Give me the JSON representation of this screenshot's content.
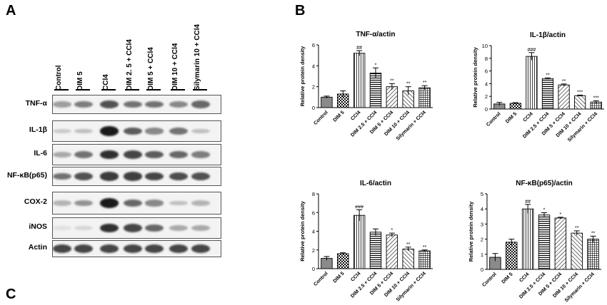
{
  "panels": {
    "a": "A",
    "b": "B",
    "c": "C"
  },
  "western_blot": {
    "lanes": [
      "Control",
      "DIM 5",
      "CCl4",
      "DIM 2. 5 + CCl4",
      "DIM 5 + CCl4",
      "DIM 10 + CCl4",
      "Silymarin 10 + CCl4"
    ],
    "rows": [
      {
        "label": "TNF-α",
        "intensity": [
          0.35,
          0.5,
          0.7,
          0.55,
          0.55,
          0.45,
          0.6
        ]
      },
      {
        "label": "IL-1β",
        "intensity": [
          0.15,
          0.2,
          0.95,
          0.65,
          0.45,
          0.55,
          0.2
        ]
      },
      {
        "label": "IL-6",
        "intensity": [
          0.3,
          0.55,
          0.85,
          0.75,
          0.65,
          0.6,
          0.5
        ]
      },
      {
        "label": "NF-κB(p65)",
        "intensity": [
          0.55,
          0.7,
          0.8,
          0.78,
          0.75,
          0.72,
          0.7
        ]
      },
      {
        "label": "COX-2",
        "intensity": [
          0.25,
          0.4,
          0.95,
          0.6,
          0.45,
          0.2,
          0.25
        ]
      },
      {
        "label": "iNOS",
        "intensity": [
          0.05,
          0.1,
          0.85,
          0.75,
          0.6,
          0.3,
          0.3
        ]
      },
      {
        "label": "Actin",
        "intensity": [
          0.75,
          0.75,
          0.75,
          0.75,
          0.75,
          0.75,
          0.75
        ]
      }
    ]
  },
  "chart_data": [
    {
      "type": "bar",
      "title": "TNF-α/actin",
      "ylabel": "Relative protein density",
      "ylim": [
        0,
        6
      ],
      "yticks": [
        0,
        2,
        4,
        6
      ],
      "categories": [
        "Control",
        "DIM 5",
        "CCl4",
        "DIM 2.5 + CCl4",
        "DIM 5 + CCl4",
        "DIM 10 + CCl4",
        "Silymarin + CCl4"
      ],
      "values": [
        1.0,
        1.3,
        5.2,
        3.3,
        2.0,
        1.6,
        1.9
      ],
      "errors": [
        0.1,
        0.3,
        0.25,
        0.5,
        0.3,
        0.4,
        0.2
      ],
      "annotations": [
        "",
        "",
        "##",
        "*",
        "**",
        "**",
        "**"
      ]
    },
    {
      "type": "bar",
      "title": "IL-1β/actin",
      "ylabel": "Relative protein density",
      "ylim": [
        0,
        10
      ],
      "yticks": [
        0,
        2,
        4,
        6,
        8,
        10
      ],
      "categories": [
        "Control",
        "DIM 5",
        "CCl4",
        "DIM 2.5 + CCl4",
        "DIM 5 + CCl4",
        "DIM 10 + CCl4",
        "Silymarin + CCl4"
      ],
      "values": [
        0.8,
        0.9,
        8.3,
        4.8,
        3.8,
        2.1,
        1.1
      ],
      "errors": [
        0.25,
        0.1,
        0.6,
        0.1,
        0.15,
        0.1,
        0.2
      ],
      "annotations": [
        "",
        "",
        "###",
        "**",
        "**",
        "***",
        "***"
      ]
    },
    {
      "type": "bar",
      "title": "IL-6/actin",
      "ylabel": "Relative protein density",
      "ylim": [
        0,
        8
      ],
      "yticks": [
        0,
        2,
        4,
        6,
        8
      ],
      "categories": [
        "Control",
        "DIM 5",
        "CCl4",
        "DIM 2.5 + CCl4",
        "DIM 5 + CCl4",
        "DIM 10 + CCl4",
        "Silymarin + CCl4"
      ],
      "values": [
        1.1,
        1.6,
        5.7,
        3.9,
        3.6,
        2.1,
        1.9
      ],
      "errors": [
        0.2,
        0.1,
        0.6,
        0.35,
        0.2,
        0.2,
        0.1
      ],
      "annotations": [
        "",
        "",
        "###",
        "",
        "*",
        "**",
        "**"
      ]
    },
    {
      "type": "bar",
      "title": "NF-κB(p65)/actin",
      "ylabel": "Relative protein density",
      "ylim": [
        0,
        5
      ],
      "yticks": [
        0,
        1,
        2,
        3,
        4,
        5
      ],
      "categories": [
        "Control",
        "DIM 5",
        "CCl4",
        "DIM 2.5 + CCl4",
        "DIM 5 + CCl4",
        "DIM 10 + CCl4",
        "Silymarin + CCl4"
      ],
      "values": [
        0.8,
        1.8,
        4.0,
        3.6,
        3.4,
        2.4,
        2.0
      ],
      "errors": [
        0.25,
        0.2,
        0.3,
        0.15,
        0.05,
        0.15,
        0.2
      ],
      "annotations": [
        "",
        "",
        "##",
        "*",
        "*",
        "**",
        "**"
      ]
    }
  ]
}
